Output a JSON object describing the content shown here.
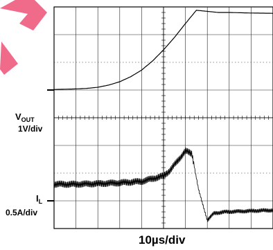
{
  "logo": {
    "color": "#f06a8a"
  },
  "channels": {
    "vout": {
      "name_main": "V",
      "name_sub": "OUT",
      "scale": "1V/div"
    },
    "il": {
      "name_main": "I",
      "name_sub": "L",
      "scale": "0.5A/div"
    }
  },
  "xaxis": {
    "label": "10µs/div"
  },
  "chart_data": {
    "type": "line",
    "x_divisions": 10,
    "y_divisions": 8,
    "grid": true,
    "series": [
      {
        "key": "vout",
        "x_div": [
          0,
          0.5,
          1,
          1.5,
          2,
          2.5,
          3,
          3.5,
          4,
          4.5,
          5,
          5.5,
          6,
          6.5,
          7,
          7.5,
          8,
          9,
          10
        ],
        "y_div": [
          5.02,
          5.03,
          5.04,
          5.06,
          5.1,
          5.18,
          5.3,
          5.48,
          5.72,
          6.05,
          6.45,
          6.9,
          7.4,
          7.88,
          7.84,
          7.8,
          7.8,
          7.78,
          7.77
        ]
      },
      {
        "key": "il",
        "noisy": true,
        "x_div": [
          0,
          1,
          2,
          3,
          4,
          5,
          5.3,
          5.7,
          6.0,
          6.3,
          6.6,
          7.0,
          7.3,
          7.8,
          8.5,
          9.5,
          10
        ],
        "y_div": [
          1.6,
          1.6,
          1.62,
          1.65,
          1.7,
          1.9,
          2.1,
          2.5,
          2.8,
          2.7,
          1.4,
          0.3,
          0.55,
          0.6,
          0.62,
          0.65,
          0.66
        ]
      }
    ],
    "ground_markers": [
      {
        "key": "vout",
        "y_div": 5.0
      },
      {
        "key": "il",
        "y_div": 1.0
      }
    ]
  }
}
